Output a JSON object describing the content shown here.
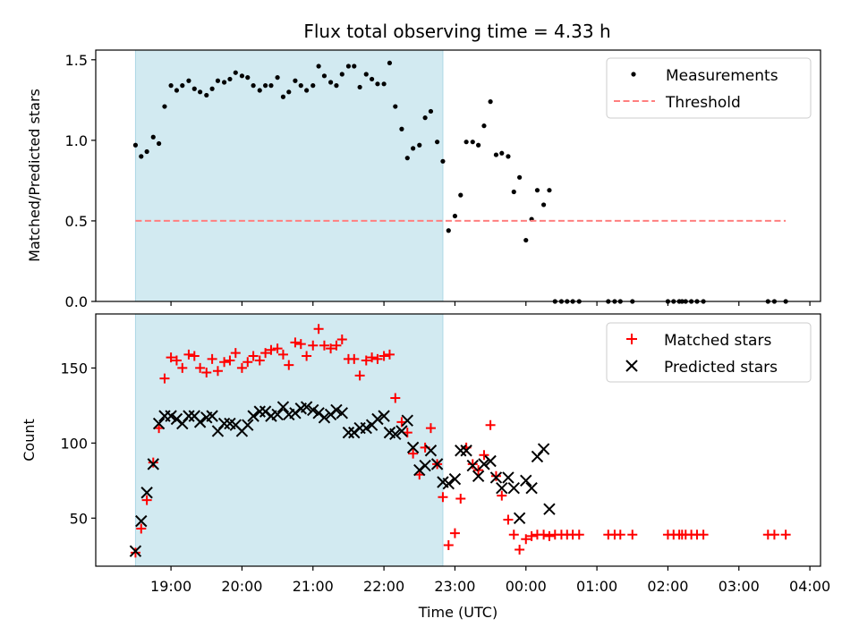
{
  "figure_title": "Flux total observing time = 4.33 h",
  "chart_data": [
    {
      "type": "scatter",
      "panel": "top",
      "ylabel": "Matched/Predicted stars",
      "xlabel": "",
      "x_unit": "hours UTC (values past 24 are after midnight)",
      "xlim": [
        17.94,
        28.15
      ],
      "ylim": [
        0,
        1.56
      ],
      "yticks": [
        0.0,
        0.5,
        1.0,
        1.5
      ],
      "ytick_labels": [
        "0.0",
        "0.5",
        "1.0",
        "1.5"
      ],
      "legend_position": "top-right",
      "shaded_interval": [
        18.5,
        22.83
      ],
      "shade_color": "#add8e6",
      "series": [
        {
          "name": "Measurements",
          "color": "#000000",
          "marker": "dot",
          "x": [
            18.5,
            18.58,
            18.66,
            18.75,
            18.83,
            18.91,
            19.0,
            19.08,
            19.16,
            19.25,
            19.33,
            19.41,
            19.5,
            19.58,
            19.66,
            19.75,
            19.83,
            19.91,
            20.0,
            20.08,
            20.16,
            20.25,
            20.33,
            20.41,
            20.5,
            20.58,
            20.66,
            20.75,
            20.83,
            20.91,
            21.0,
            21.08,
            21.16,
            21.25,
            21.33,
            21.41,
            21.5,
            21.58,
            21.66,
            21.75,
            21.83,
            21.91,
            22.0,
            22.08,
            22.16,
            22.25,
            22.33,
            22.41,
            22.5,
            22.58,
            22.66,
            22.75,
            22.83,
            22.91,
            23.0,
            23.08,
            23.16,
            23.25,
            23.33,
            23.41,
            23.5,
            23.58,
            23.66,
            23.75,
            23.83,
            23.91,
            24.0,
            24.08,
            24.16,
            24.25,
            24.33,
            24.41,
            24.5,
            24.58,
            24.66,
            24.75,
            25.16,
            25.25,
            25.33,
            25.5,
            26.0,
            26.08,
            26.16,
            26.2,
            26.25,
            26.33,
            26.41,
            26.5,
            27.41,
            27.5,
            27.66
          ],
          "y": [
            0.97,
            0.9,
            0.93,
            1.02,
            0.98,
            1.21,
            1.34,
            1.31,
            1.34,
            1.37,
            1.32,
            1.3,
            1.28,
            1.32,
            1.37,
            1.36,
            1.38,
            1.42,
            1.4,
            1.39,
            1.34,
            1.31,
            1.34,
            1.34,
            1.39,
            1.27,
            1.3,
            1.37,
            1.34,
            1.31,
            1.34,
            1.46,
            1.4,
            1.36,
            1.34,
            1.41,
            1.46,
            1.46,
            1.33,
            1.41,
            1.38,
            1.35,
            1.35,
            1.48,
            1.21,
            1.07,
            0.89,
            0.95,
            0.97,
            1.14,
            1.18,
            0.99,
            0.87,
            0.44,
            0.53,
            0.66,
            0.99,
            0.99,
            0.97,
            1.09,
            1.24,
            0.91,
            0.92,
            0.9,
            0.68,
            0.77,
            0.38,
            0.51,
            0.69,
            0.6,
            0.69,
            0.0,
            0.0,
            0.0,
            0.0,
            0.0,
            0.0,
            0.0,
            0.0,
            0.0,
            0.0,
            0.0,
            0.0,
            0.0,
            0.0,
            0.0,
            0.0,
            0.0,
            0.0,
            0.0,
            0.0
          ]
        },
        {
          "name": "Threshold",
          "color": "#ff7f7f",
          "style": "dashed",
          "x": [
            18.5,
            27.66
          ],
          "y": [
            0.5,
            0.5
          ]
        }
      ]
    },
    {
      "type": "scatter",
      "panel": "bottom",
      "ylabel": "Count",
      "xlabel": "Time (UTC)",
      "x_unit": "hours UTC (values past 24 are after midnight)",
      "xlim": [
        17.94,
        28.15
      ],
      "ylim": [
        18,
        186
      ],
      "yticks": [
        50,
        100,
        150
      ],
      "ytick_labels": [
        "50",
        "100",
        "150"
      ],
      "xticks": [
        19,
        20,
        21,
        22,
        23,
        24,
        25,
        26,
        27,
        28
      ],
      "xtick_labels": [
        "19:00",
        "20:00",
        "21:00",
        "22:00",
        "23:00",
        "00:00",
        "01:00",
        "02:00",
        "03:00",
        "04:00"
      ],
      "legend_position": "top-right",
      "shaded_interval": [
        18.5,
        22.83
      ],
      "shade_color": "#add8e6",
      "series": [
        {
          "name": "Matched stars",
          "color": "#ff0000",
          "marker": "plus",
          "x": [
            18.5,
            18.58,
            18.66,
            18.75,
            18.83,
            18.91,
            19.0,
            19.08,
            19.16,
            19.25,
            19.33,
            19.41,
            19.5,
            19.58,
            19.66,
            19.75,
            19.83,
            19.91,
            20.0,
            20.08,
            20.16,
            20.25,
            20.33,
            20.41,
            20.5,
            20.58,
            20.66,
            20.75,
            20.83,
            20.91,
            21.0,
            21.08,
            21.16,
            21.25,
            21.33,
            21.41,
            21.5,
            21.58,
            21.66,
            21.75,
            21.83,
            21.91,
            22.0,
            22.08,
            22.16,
            22.25,
            22.33,
            22.41,
            22.5,
            22.58,
            22.66,
            22.75,
            22.83,
            22.91,
            23.0,
            23.08,
            23.16,
            23.25,
            23.33,
            23.41,
            23.5,
            23.58,
            23.66,
            23.75,
            23.83,
            23.91,
            24.0,
            24.08,
            24.16,
            24.25,
            24.33,
            24.41,
            24.5,
            24.58,
            24.66,
            24.75,
            25.16,
            25.25,
            25.33,
            25.5,
            26.0,
            26.08,
            26.16,
            26.2,
            26.25,
            26.33,
            26.41,
            26.5,
            27.41,
            27.5,
            27.66
          ],
          "y": [
            27,
            43,
            62,
            87,
            110,
            143,
            157,
            155,
            150,
            159,
            158,
            150,
            147,
            156,
            148,
            154,
            155,
            160,
            150,
            154,
            158,
            155,
            160,
            162,
            163,
            159,
            152,
            167,
            166,
            158,
            165,
            176,
            165,
            163,
            165,
            169,
            156,
            156,
            145,
            155,
            157,
            156,
            158,
            159,
            130,
            114,
            107,
            93,
            79,
            97,
            110,
            86,
            64,
            32,
            40,
            63,
            97,
            86,
            82,
            92,
            112,
            78,
            65,
            49,
            39,
            29,
            36,
            38,
            39,
            39,
            38,
            39,
            39,
            39,
            39,
            39,
            39,
            39,
            39,
            39,
            39,
            39,
            39,
            39,
            39,
            39,
            39,
            39,
            39,
            39,
            39
          ]
        },
        {
          "name": "Predicted stars",
          "color": "#000000",
          "marker": "x",
          "x": [
            18.5,
            18.58,
            18.66,
            18.75,
            18.83,
            18.91,
            19.0,
            19.08,
            19.16,
            19.25,
            19.33,
            19.41,
            19.5,
            19.58,
            19.66,
            19.75,
            19.83,
            19.91,
            20.0,
            20.08,
            20.16,
            20.25,
            20.33,
            20.41,
            20.5,
            20.58,
            20.66,
            20.75,
            20.83,
            20.91,
            21.0,
            21.08,
            21.16,
            21.25,
            21.33,
            21.41,
            21.5,
            21.58,
            21.66,
            21.75,
            21.83,
            21.91,
            22.0,
            22.08,
            22.16,
            22.25,
            22.33,
            22.41,
            22.5,
            22.58,
            22.66,
            22.75,
            22.83,
            22.91,
            23.0,
            23.08,
            23.16,
            23.25,
            23.33,
            23.41,
            23.5,
            23.58,
            23.66,
            23.75,
            23.83,
            23.91,
            24.0,
            24.08,
            24.16,
            24.25,
            24.33
          ],
          "y": [
            28,
            48,
            67,
            86,
            113,
            118,
            118,
            116,
            113,
            118,
            118,
            114,
            117,
            118,
            108,
            113,
            113,
            112,
            108,
            112,
            118,
            121,
            121,
            118,
            119,
            124,
            119,
            120,
            123,
            124,
            122,
            120,
            117,
            119,
            122,
            120,
            107,
            107,
            110,
            110,
            112,
            116,
            118,
            107,
            106,
            108,
            115,
            97,
            82,
            85,
            95,
            86,
            74,
            73,
            76,
            95,
            95,
            85,
            78,
            86,
            88,
            77,
            70,
            77,
            70,
            50,
            75,
            70,
            91,
            96,
            56
          ]
        }
      ]
    }
  ]
}
